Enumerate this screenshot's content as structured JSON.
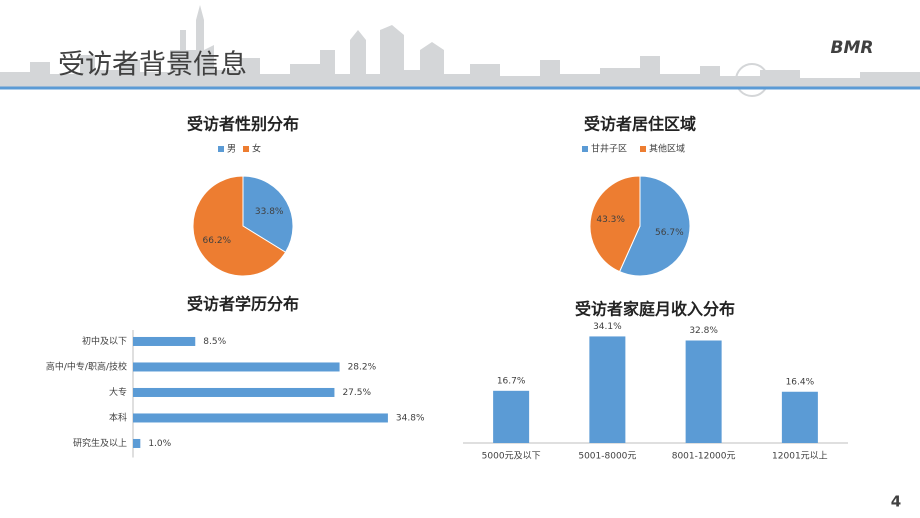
{
  "header": {
    "title": "受访者背景信息",
    "logo": "BMR"
  },
  "page_number": "4",
  "chart_data": [
    {
      "type": "pie",
      "title": "受访者性别分布",
      "categories": [
        "男",
        "女"
      ],
      "values": [
        33.8,
        66.2
      ],
      "value_labels": [
        "33.8%",
        "66.2%"
      ],
      "colors": [
        "#5b9bd5",
        "#ed7d31"
      ],
      "legend": "top"
    },
    {
      "type": "pie",
      "title": "受访者居住区域",
      "categories": [
        "甘井子区",
        "其他区域"
      ],
      "values": [
        56.7,
        43.3
      ],
      "value_labels": [
        "56.7%",
        "43.3%"
      ],
      "colors": [
        "#5b9bd5",
        "#ed7d31"
      ],
      "legend": "top"
    },
    {
      "type": "hbar",
      "title": "受访者学历分布",
      "categories": [
        "初中及以下",
        "高中/中专/职高/技校",
        "大专",
        "本科",
        "研究生及以上"
      ],
      "values": [
        8.5,
        28.2,
        27.5,
        34.8,
        1.0
      ],
      "value_labels": [
        "8.5%",
        "28.2%",
        "27.5%",
        "34.8%",
        "1.0%"
      ],
      "color": "#5b9bd5",
      "xlim": [
        0,
        40
      ]
    },
    {
      "type": "bar",
      "title": "受访者家庭月收入分布",
      "categories": [
        "5000元及以下",
        "5001-8000元",
        "8001-12000元",
        "12001元以上"
      ],
      "values": [
        16.7,
        34.1,
        32.8,
        16.4
      ],
      "value_labels": [
        "16.7%",
        "34.1%",
        "32.8%",
        "16.4%"
      ],
      "color": "#5b9bd5",
      "ylim": [
        0,
        40
      ]
    }
  ]
}
